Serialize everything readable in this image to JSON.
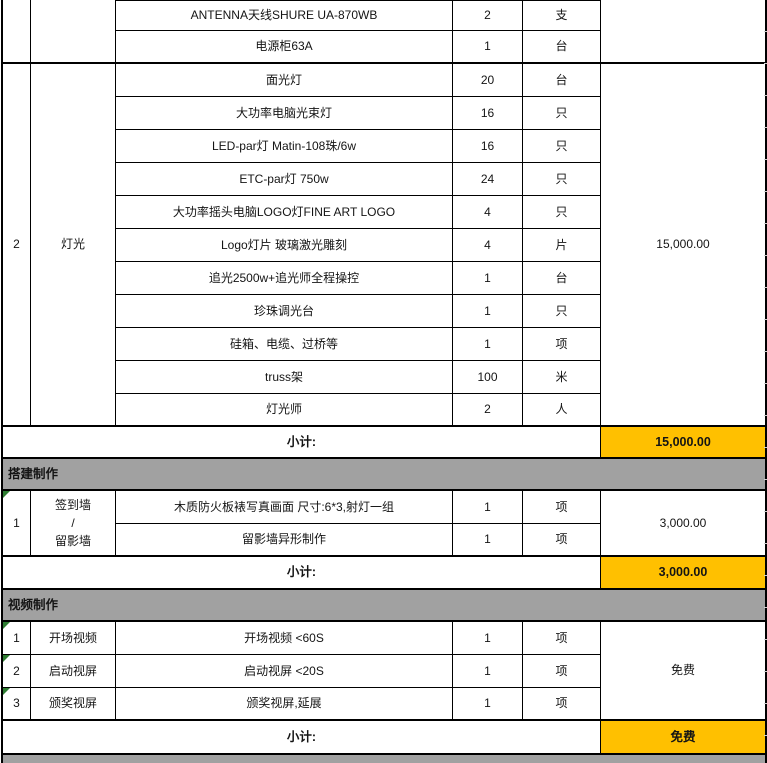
{
  "prev_section_tail": {
    "items": [
      {
        "desc": "ANTENNA天线SHURE UA-870WB",
        "qty": "2",
        "unit": "支"
      },
      {
        "desc": "电源柜63A",
        "qty": "1",
        "unit": "台"
      }
    ]
  },
  "lighting": {
    "no": "2",
    "category": "灯光",
    "merged_price": "15,000.00",
    "items": [
      {
        "desc": "面光灯",
        "qty": "20",
        "unit": "台"
      },
      {
        "desc": "大功率电脑光束灯",
        "qty": "16",
        "unit": "只"
      },
      {
        "desc": "LED-par灯 Matin-108珠/6w",
        "qty": "16",
        "unit": "只"
      },
      {
        "desc": "ETC-par灯 750w",
        "qty": "24",
        "unit": "只"
      },
      {
        "desc": "大功率摇头电脑LOGO灯FINE ART LOGO",
        "qty": "4",
        "unit": "只"
      },
      {
        "desc": "Logo灯片 玻璃激光雕刻",
        "qty": "4",
        "unit": "片"
      },
      {
        "desc": "追光2500w+追光师全程操控",
        "qty": "1",
        "unit": "台"
      },
      {
        "desc": "珍珠调光台",
        "qty": "1",
        "unit": "只"
      },
      {
        "desc": "硅箱、电缆、过桥等",
        "qty": "1",
        "unit": "项"
      },
      {
        "desc": "truss架",
        "qty": "100",
        "unit": "米"
      },
      {
        "desc": "灯光师",
        "qty": "2",
        "unit": "人"
      }
    ],
    "subtotal_label": "小计:",
    "subtotal_value": "15,000.00"
  },
  "build": {
    "header": "搭建制作",
    "no": "1",
    "category_line1": "签到墙",
    "category_line2": "/",
    "category_line3": "留影墙",
    "merged_price": "3,000.00",
    "items": [
      {
        "desc": "木质防火板裱写真画面 尺寸:6*3,射灯一组",
        "qty": "1",
        "unit": "项"
      },
      {
        "desc": "留影墙异形制作",
        "qty": "1",
        "unit": "项"
      }
    ],
    "subtotal_label": "小计:",
    "subtotal_value": "3,000.00"
  },
  "video": {
    "header": "视频制作",
    "merged_price": "免费",
    "rows": [
      {
        "no": "1",
        "category": "开场视频",
        "desc": "开场视频 <60S",
        "qty": "1",
        "unit": "项"
      },
      {
        "no": "2",
        "category": "启动视屏",
        "desc": "启动视屏 <20S",
        "qty": "1",
        "unit": "项"
      },
      {
        "no": "3",
        "category": "颁奖视屏",
        "desc": "颁奖视屏,延展",
        "qty": "1",
        "unit": "项"
      }
    ],
    "subtotal_label": "小计:",
    "subtotal_value": "免费"
  },
  "colors": {
    "highlight": "#ffc000",
    "section_header_bg": "#a1a1a1",
    "flag_green": "#2e7d32"
  }
}
